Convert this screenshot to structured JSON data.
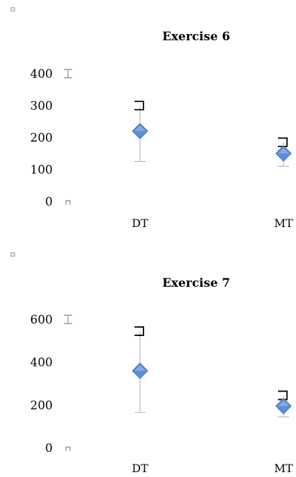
{
  "chart_data": [
    {
      "type": "scatter",
      "title": "Exercise 6",
      "categories": [
        "DT",
        "MT"
      ],
      "values": [
        220,
        150
      ],
      "error_high": [
        300,
        185
      ],
      "error_low": [
        125,
        110
      ],
      "ylim": [
        0,
        400
      ],
      "yticks": [
        "0",
        "100",
        "200",
        "300",
        "400"
      ],
      "xlabel": "",
      "ylabel": "",
      "grid": false,
      "marker": "diamond",
      "marker_color": "#5b8fd6"
    },
    {
      "type": "scatter",
      "title": "Exercise 7",
      "categories": [
        "DT",
        "MT"
      ],
      "values": [
        360,
        195
      ],
      "error_high": [
        545,
        245
      ],
      "error_low": [
        165,
        145
      ],
      "ylim": [
        0,
        600
      ],
      "yticks": [
        "0",
        "200",
        "400",
        "600"
      ],
      "xlabel": "",
      "ylabel": "",
      "grid": false,
      "marker": "diamond",
      "marker_color": "#5b8fd6"
    }
  ]
}
